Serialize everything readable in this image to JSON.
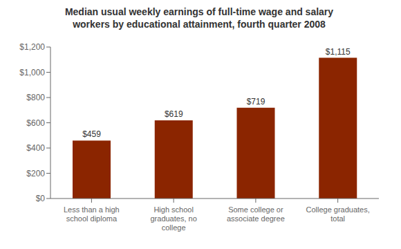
{
  "chart_data": {
    "type": "bar",
    "title": "Median usual weekly earnings of full-time wage and salary\nworkers by educational attainment, fourth quarter 2008",
    "categories": [
      "Less than a high\nschool diploma",
      "High school\ngraduates, no\ncollege",
      "Some college or\nassociate degree",
      "College graduates,\ntotal"
    ],
    "values": [
      459,
      619,
      719,
      1115
    ],
    "value_labels": [
      "$459",
      "$619",
      "$719",
      "$1,115"
    ],
    "data_labels": true,
    "color": "#8B2500",
    "ylim": [
      0,
      1200
    ],
    "yticks": [
      {
        "value": 0,
        "label": "$0"
      },
      {
        "value": 200,
        "label": "$200"
      },
      {
        "value": 400,
        "label": "$400"
      },
      {
        "value": 600,
        "label": "$600"
      },
      {
        "value": 800,
        "label": "$800"
      },
      {
        "value": 1000,
        "label": "$1,000"
      },
      {
        "value": 1200,
        "label": "$1,200"
      }
    ],
    "grid": false
  }
}
